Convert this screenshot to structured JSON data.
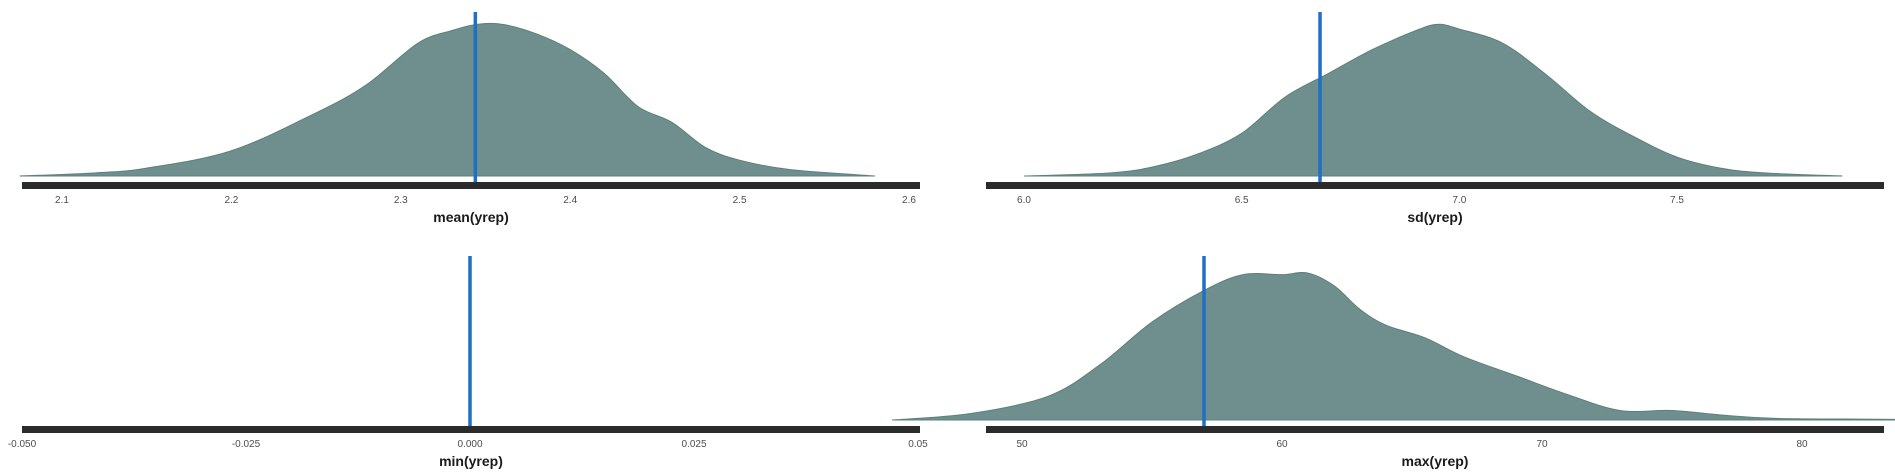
{
  "chart_data": [
    {
      "type": "area",
      "xlabel": "mean(yrep)",
      "xlim": [
        2.05,
        2.6
      ],
      "xticks": [
        2.1,
        2.2,
        2.3,
        2.4,
        2.5,
        2.6
      ],
      "xtick_labels": [
        "2.1",
        "2.2",
        "2.3",
        "2.4",
        "2.5",
        "2.6"
      ],
      "observed_value": 2.344,
      "density": {
        "x": [
          2.075,
          2.12,
          2.15,
          2.2,
          2.25,
          2.28,
          2.31,
          2.33,
          2.345,
          2.36,
          2.38,
          2.4,
          2.42,
          2.44,
          2.46,
          2.48,
          2.5,
          2.53,
          2.58
        ],
        "y": [
          0.0,
          0.02,
          0.05,
          0.16,
          0.4,
          0.58,
          0.84,
          0.92,
          0.96,
          0.96,
          0.9,
          0.8,
          0.65,
          0.44,
          0.34,
          0.18,
          0.1,
          0.04,
          0.0
        ]
      },
      "grid": false,
      "legend": "none"
    },
    {
      "type": "area",
      "xlabel": "sd(yrep)",
      "xlim": [
        5.97,
        8.05
      ],
      "xticks": [
        6.0,
        6.5,
        7.0,
        7.5
      ],
      "xtick_labels": [
        "6.0",
        "6.5",
        "7.0",
        "7.5"
      ],
      "observed_value": 6.68,
      "density": {
        "x": [
          6.0,
          6.2,
          6.3,
          6.4,
          6.5,
          6.6,
          6.7,
          6.8,
          6.9,
          6.95,
          7.0,
          7.1,
          7.2,
          7.3,
          7.4,
          7.5,
          7.6,
          7.7,
          7.88
        ],
        "y": [
          0.0,
          0.02,
          0.06,
          0.14,
          0.27,
          0.5,
          0.65,
          0.8,
          0.92,
          0.96,
          0.93,
          0.84,
          0.64,
          0.41,
          0.25,
          0.12,
          0.05,
          0.02,
          0.0
        ]
      },
      "grid": false,
      "legend": "none"
    },
    {
      "type": "area",
      "xlabel": "min(yrep)",
      "xlim": [
        -0.05,
        0.05
      ],
      "xticks": [
        -0.05,
        -0.025,
        0.0,
        0.025,
        0.05
      ],
      "xtick_labels": [
        "-0.050",
        "-0.025",
        "0.000",
        "0.025",
        "0.05"
      ],
      "observed_value": 0.0,
      "density": {
        "x": [],
        "y": []
      },
      "grid": false,
      "legend": "none"
    },
    {
      "type": "area",
      "xlabel": "max(yrep)",
      "xlim": [
        44,
        89
      ],
      "xticks": [
        50,
        60,
        70,
        80
      ],
      "xtick_labels": [
        "50",
        "60",
        "70",
        "80"
      ],
      "observed_value": 57,
      "density": {
        "x": [
          45,
          48,
          51,
          53,
          55,
          57,
          58.5,
          60,
          61,
          62,
          63,
          64,
          65.5,
          67,
          69,
          71,
          73,
          75,
          77,
          79,
          83,
          87
        ],
        "y": [
          0.0,
          0.04,
          0.15,
          0.35,
          0.62,
          0.82,
          0.92,
          0.92,
          0.93,
          0.85,
          0.7,
          0.6,
          0.52,
          0.4,
          0.28,
          0.16,
          0.06,
          0.06,
          0.03,
          0.01,
          0.005,
          0.0
        ]
      },
      "grid": false,
      "legend": "none"
    }
  ],
  "colors": {
    "density_fill": "#6e8f8d",
    "density_line": "#5e7f7d",
    "observed_line": "#1f6fc5",
    "axis_bar": "#2b2b2b",
    "tick_text": "#4d4d4d",
    "title_text": "#1a1a1a"
  }
}
